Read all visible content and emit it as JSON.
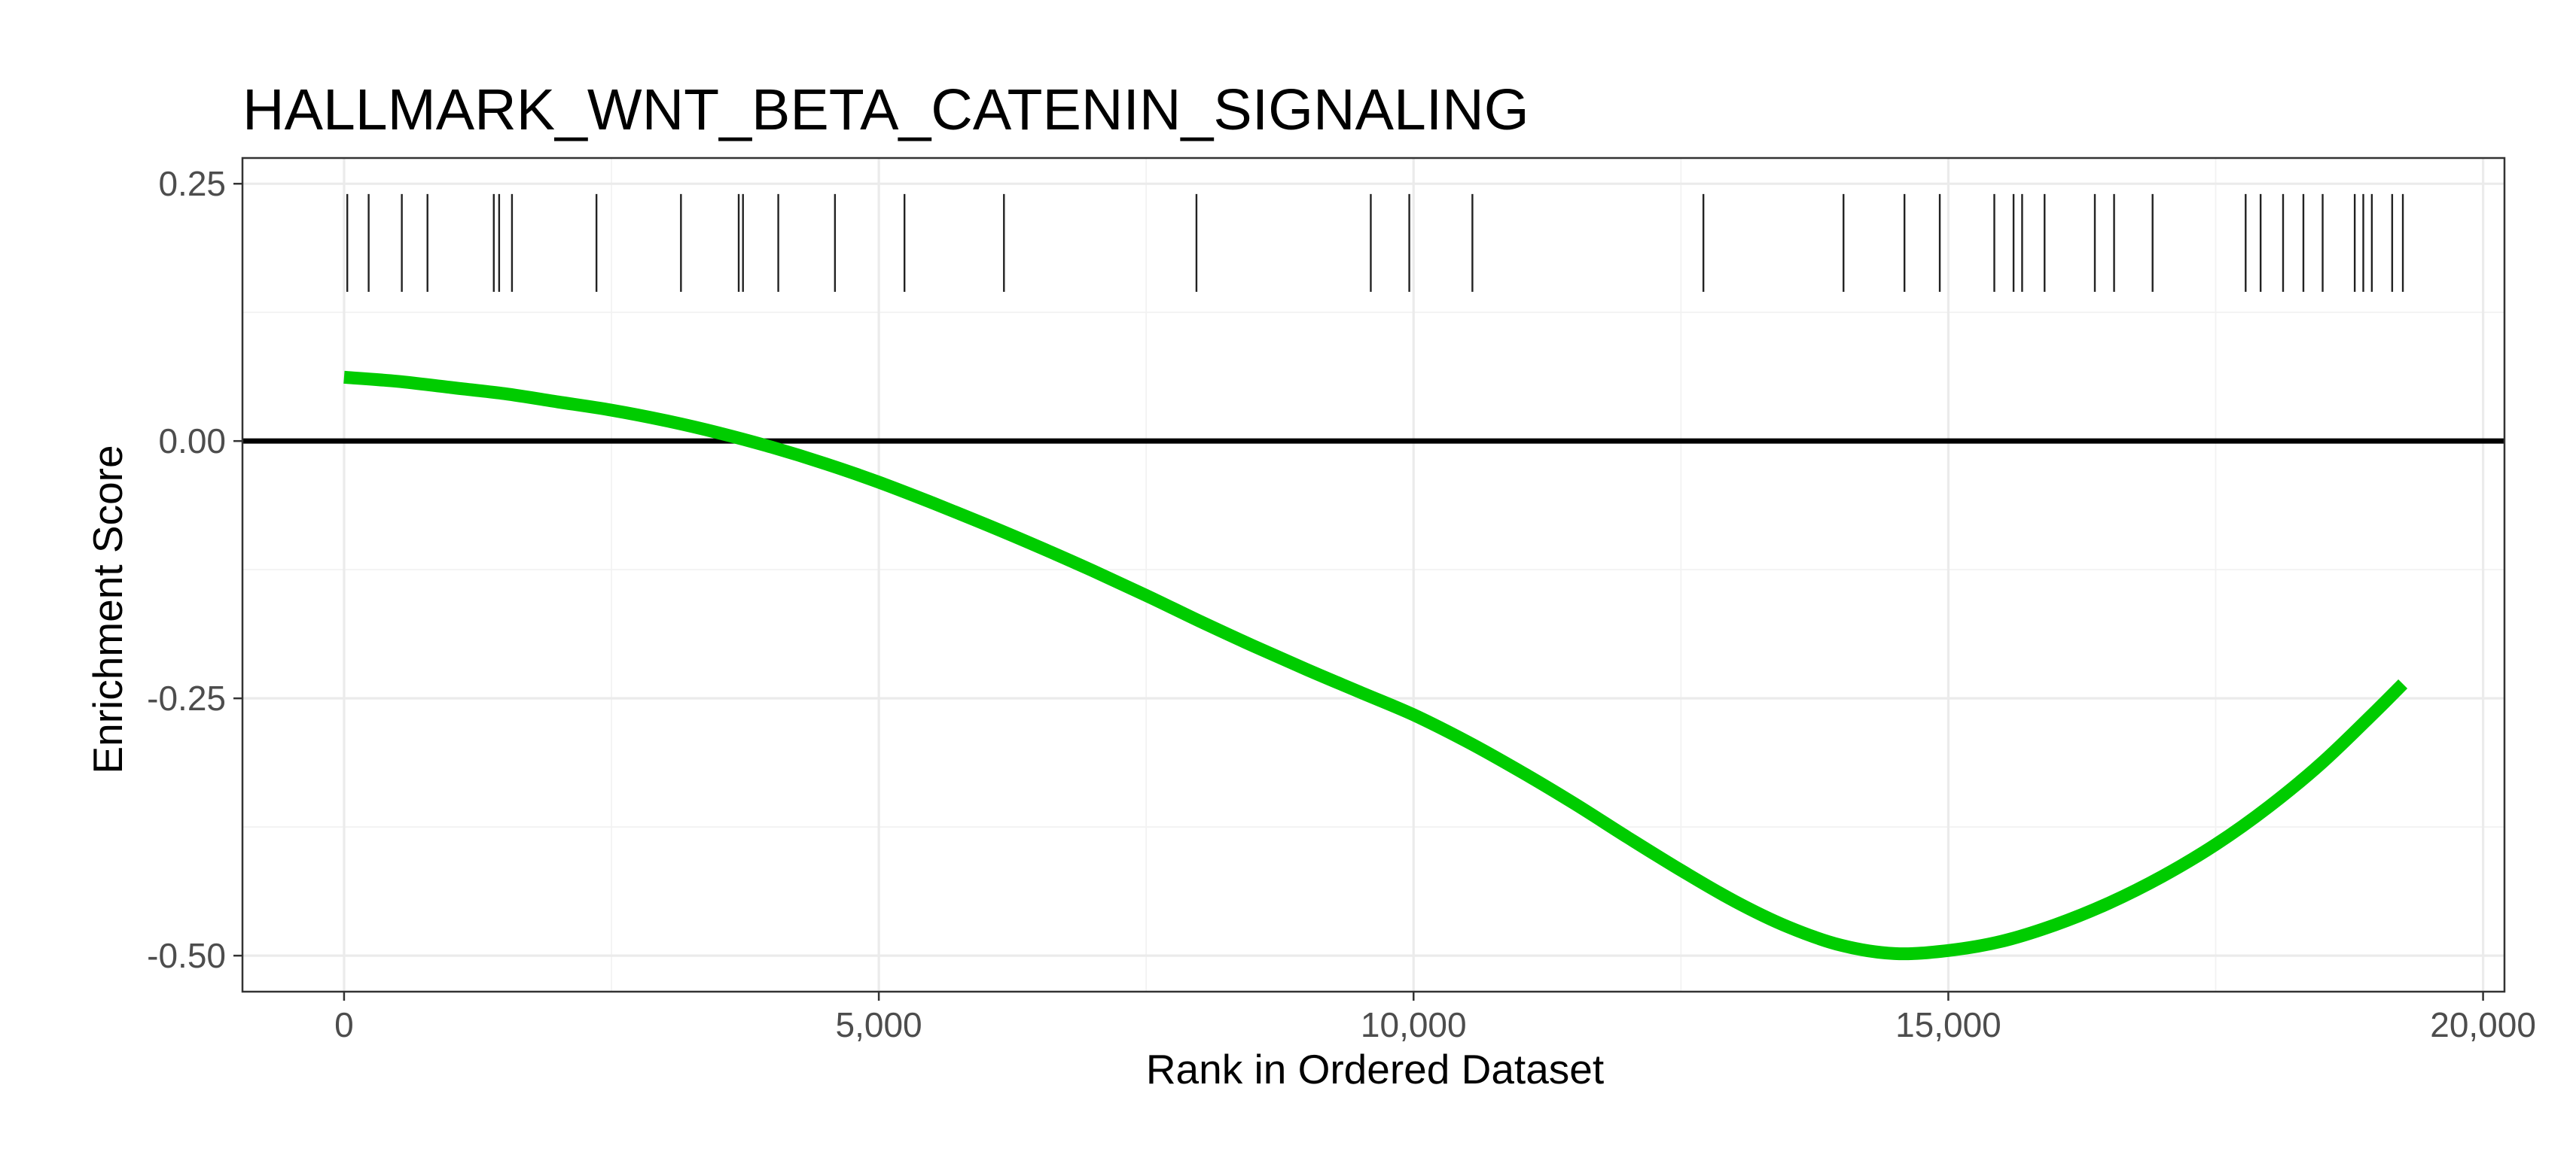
{
  "chart_data": {
    "type": "line",
    "title": "HALLMARK_WNT_BETA_CATENIN_SIGNALING",
    "xlabel": "Rank in Ordered Dataset",
    "ylabel": "Enrichment Score",
    "xlim": [
      -950,
      20200
    ],
    "ylim": [
      -0.535,
      0.275
    ],
    "x_ticks": [
      {
        "value": 0,
        "label": "0"
      },
      {
        "value": 5000,
        "label": "5,000"
      },
      {
        "value": 10000,
        "label": "10,000"
      },
      {
        "value": 15000,
        "label": "15,000"
      },
      {
        "value": 20000,
        "label": "20,000"
      }
    ],
    "y_ticks": [
      {
        "value": 0.25,
        "label": "0.25"
      },
      {
        "value": 0.0,
        "label": "0.00"
      },
      {
        "value": -0.25,
        "label": "-0.25"
      },
      {
        "value": -0.5,
        "label": "-0.50"
      }
    ],
    "grid": true,
    "colors": {
      "curve": "#00cc00",
      "zero_line": "#000000",
      "hits": "#222222"
    },
    "reference_line_y": 0,
    "hit_band": [
      0.145,
      0.24
    ],
    "gene_hits": [
      30,
      230,
      540,
      780,
      1400,
      1450,
      1570,
      2360,
      3150,
      3690,
      3730,
      4060,
      4590,
      5240,
      6170,
      7970,
      9600,
      9960,
      10550,
      12710,
      14020,
      14590,
      14920,
      15430,
      15610,
      15690,
      15900,
      16370,
      16550,
      16910,
      17780,
      17920,
      18130,
      18320,
      18500,
      18800,
      18880,
      18960,
      19150,
      19250
    ],
    "series": [
      {
        "values": [
          {
            "x": 0,
            "y": 0.062
          },
          {
            "x": 500,
            "y": 0.058
          },
          {
            "x": 1000,
            "y": 0.052
          },
          {
            "x": 1500,
            "y": 0.046
          },
          {
            "x": 2000,
            "y": 0.038
          },
          {
            "x": 2500,
            "y": 0.03
          },
          {
            "x": 3000,
            "y": 0.02
          },
          {
            "x": 3500,
            "y": 0.008
          },
          {
            "x": 4000,
            "y": -0.006
          },
          {
            "x": 4500,
            "y": -0.022
          },
          {
            "x": 5000,
            "y": -0.04
          },
          {
            "x": 5500,
            "y": -0.06
          },
          {
            "x": 6000,
            "y": -0.081
          },
          {
            "x": 6500,
            "y": -0.103
          },
          {
            "x": 7000,
            "y": -0.126
          },
          {
            "x": 7500,
            "y": -0.15
          },
          {
            "x": 8000,
            "y": -0.175
          },
          {
            "x": 8500,
            "y": -0.199
          },
          {
            "x": 9000,
            "y": -0.222
          },
          {
            "x": 9500,
            "y": -0.244
          },
          {
            "x": 10000,
            "y": -0.266
          },
          {
            "x": 10500,
            "y": -0.292
          },
          {
            "x": 11000,
            "y": -0.321
          },
          {
            "x": 11500,
            "y": -0.352
          },
          {
            "x": 12000,
            "y": -0.385
          },
          {
            "x": 12500,
            "y": -0.417
          },
          {
            "x": 13000,
            "y": -0.447
          },
          {
            "x": 13500,
            "y": -0.472
          },
          {
            "x": 14000,
            "y": -0.49
          },
          {
            "x": 14500,
            "y": -0.498
          },
          {
            "x": 15000,
            "y": -0.495
          },
          {
            "x": 15500,
            "y": -0.486
          },
          {
            "x": 16000,
            "y": -0.47
          },
          {
            "x": 16500,
            "y": -0.449
          },
          {
            "x": 17000,
            "y": -0.423
          },
          {
            "x": 17500,
            "y": -0.392
          },
          {
            "x": 18000,
            "y": -0.355
          },
          {
            "x": 18500,
            "y": -0.312
          },
          {
            "x": 19000,
            "y": -0.262
          },
          {
            "x": 19250,
            "y": -0.236
          }
        ]
      }
    ]
  }
}
